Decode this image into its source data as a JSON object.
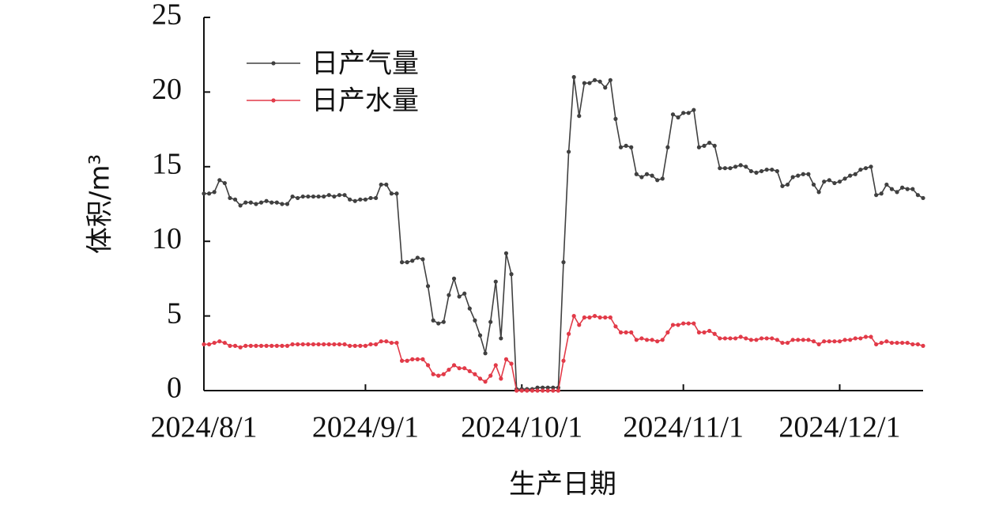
{
  "chart_data": {
    "type": "line",
    "xlabel": "生产日期",
    "ylabel": "体积/m³",
    "x": [
      "2024/8/1",
      "2024/8/2",
      "2024/8/3",
      "2024/8/4",
      "2024/8/5",
      "2024/8/6",
      "2024/8/7",
      "2024/8/8",
      "2024/8/9",
      "2024/8/10",
      "2024/8/11",
      "2024/8/12",
      "2024/8/13",
      "2024/8/14",
      "2024/8/15",
      "2024/8/16",
      "2024/8/17",
      "2024/8/18",
      "2024/8/19",
      "2024/8/20",
      "2024/8/21",
      "2024/8/22",
      "2024/8/23",
      "2024/8/24",
      "2024/8/25",
      "2024/8/26",
      "2024/8/27",
      "2024/8/28",
      "2024/8/29",
      "2024/8/30",
      "2024/8/31",
      "2024/9/1",
      "2024/9/2",
      "2024/9/3",
      "2024/9/4",
      "2024/9/5",
      "2024/9/6",
      "2024/9/7",
      "2024/9/8",
      "2024/9/9",
      "2024/9/10",
      "2024/9/11",
      "2024/9/12",
      "2024/9/13",
      "2024/9/14",
      "2024/9/15",
      "2024/9/16",
      "2024/9/17",
      "2024/9/18",
      "2024/9/19",
      "2024/9/20",
      "2024/9/21",
      "2024/9/22",
      "2024/9/23",
      "2024/9/24",
      "2024/9/25",
      "2024/9/26",
      "2024/9/27",
      "2024/9/28",
      "2024/9/29",
      "2024/9/30",
      "2024/10/1",
      "2024/10/2",
      "2024/10/3",
      "2024/10/4",
      "2024/10/5",
      "2024/10/6",
      "2024/10/7",
      "2024/10/8",
      "2024/10/9",
      "2024/10/10",
      "2024/10/11",
      "2024/10/12",
      "2024/10/13",
      "2024/10/14",
      "2024/10/15",
      "2024/10/16",
      "2024/10/17",
      "2024/10/18",
      "2024/10/19",
      "2024/10/20",
      "2024/10/21",
      "2024/10/22",
      "2024/10/23",
      "2024/10/24",
      "2024/10/25",
      "2024/10/26",
      "2024/10/27",
      "2024/10/28",
      "2024/10/29",
      "2024/10/30",
      "2024/10/31",
      "2024/11/1",
      "2024/11/2",
      "2024/11/3",
      "2024/11/4",
      "2024/11/5",
      "2024/11/6",
      "2024/11/7",
      "2024/11/8",
      "2024/11/9",
      "2024/11/10",
      "2024/11/11",
      "2024/11/12",
      "2024/11/13",
      "2024/11/14",
      "2024/11/15",
      "2024/11/16",
      "2024/11/17",
      "2024/11/18",
      "2024/11/19",
      "2024/11/20",
      "2024/11/21",
      "2024/11/22",
      "2024/11/23",
      "2024/11/24",
      "2024/11/25",
      "2024/11/26",
      "2024/11/27",
      "2024/11/28",
      "2024/11/29",
      "2024/11/30",
      "2024/12/1",
      "2024/12/2",
      "2024/12/3",
      "2024/12/4",
      "2024/12/5",
      "2024/12/6",
      "2024/12/7",
      "2024/12/8",
      "2024/12/9",
      "2024/12/10",
      "2024/12/11",
      "2024/12/12",
      "2024/12/13",
      "2024/12/14",
      "2024/12/15",
      "2024/12/16",
      "2024/12/17"
    ],
    "series": [
      {
        "name": "日产气量",
        "color": "#404040",
        "values": [
          13.2,
          13.2,
          13.3,
          14.1,
          13.9,
          12.9,
          12.8,
          12.4,
          12.6,
          12.6,
          12.5,
          12.6,
          12.7,
          12.6,
          12.6,
          12.5,
          12.5,
          13.0,
          12.9,
          13.0,
          13.0,
          13.0,
          13.0,
          13.0,
          13.1,
          13.0,
          13.1,
          13.1,
          12.8,
          12.7,
          12.8,
          12.8,
          12.9,
          12.9,
          13.8,
          13.8,
          13.2,
          13.2,
          8.6,
          8.6,
          8.7,
          8.9,
          8.8,
          7.0,
          4.7,
          4.5,
          4.6,
          6.4,
          7.5,
          6.3,
          6.5,
          5.5,
          4.7,
          3.7,
          2.5,
          4.6,
          7.3,
          3.5,
          9.2,
          7.8,
          0.1,
          0.1,
          0.1,
          0.1,
          0.2,
          0.2,
          0.2,
          0.2,
          0.2,
          8.6,
          16.0,
          21.0,
          18.4,
          20.6,
          20.6,
          20.8,
          20.7,
          20.3,
          20.8,
          18.2,
          16.3,
          16.4,
          16.3,
          14.5,
          14.3,
          14.5,
          14.4,
          14.1,
          14.2,
          16.3,
          18.5,
          18.3,
          18.6,
          18.6,
          18.8,
          16.3,
          16.4,
          16.6,
          16.4,
          14.9,
          14.9,
          14.9,
          15.0,
          15.1,
          15.0,
          14.7,
          14.6,
          14.7,
          14.8,
          14.8,
          14.7,
          13.7,
          13.8,
          14.3,
          14.4,
          14.5,
          14.5,
          13.8,
          13.3,
          14.0,
          14.1,
          13.9,
          14.0,
          14.2,
          14.4,
          14.5,
          14.8,
          14.9,
          15.0,
          13.1,
          13.2,
          13.8,
          13.5,
          13.3,
          13.6,
          13.5,
          13.5,
          13.1,
          12.9
        ]
      },
      {
        "name": "日产水量",
        "color": "#e23a48",
        "values": [
          3.1,
          3.1,
          3.2,
          3.3,
          3.2,
          3.0,
          3.0,
          2.9,
          3.0,
          3.0,
          3.0,
          3.0,
          3.0,
          3.0,
          3.0,
          3.0,
          3.0,
          3.1,
          3.1,
          3.1,
          3.1,
          3.1,
          3.1,
          3.1,
          3.1,
          3.1,
          3.1,
          3.1,
          3.0,
          3.0,
          3.0,
          3.0,
          3.1,
          3.1,
          3.3,
          3.3,
          3.2,
          3.2,
          2.0,
          2.0,
          2.1,
          2.1,
          2.1,
          1.7,
          1.1,
          1.0,
          1.1,
          1.4,
          1.7,
          1.5,
          1.5,
          1.3,
          1.1,
          0.8,
          0.6,
          1.0,
          1.7,
          0.8,
          2.1,
          1.8,
          0.0,
          0.0,
          0.0,
          0.0,
          0.0,
          0.0,
          0.0,
          0.0,
          0.0,
          2.0,
          3.8,
          5.0,
          4.4,
          4.9,
          4.9,
          5.0,
          4.9,
          4.9,
          4.9,
          4.3,
          3.9,
          3.9,
          3.9,
          3.4,
          3.5,
          3.4,
          3.4,
          3.3,
          3.4,
          3.9,
          4.4,
          4.4,
          4.5,
          4.5,
          4.5,
          3.9,
          3.9,
          4.0,
          3.8,
          3.5,
          3.5,
          3.5,
          3.5,
          3.6,
          3.5,
          3.4,
          3.4,
          3.5,
          3.5,
          3.5,
          3.4,
          3.2,
          3.2,
          3.4,
          3.4,
          3.4,
          3.4,
          3.3,
          3.1,
          3.3,
          3.3,
          3.3,
          3.3,
          3.4,
          3.4,
          3.5,
          3.5,
          3.6,
          3.6,
          3.1,
          3.2,
          3.3,
          3.2,
          3.2,
          3.2,
          3.2,
          3.1,
          3.1,
          3.0
        ]
      }
    ],
    "xlim": [
      "2024/8/1",
      "2024/12/17"
    ],
    "xticks": [
      "2024/8/1",
      "2024/9/1",
      "2024/10/1",
      "2024/11/1",
      "2024/12/1"
    ],
    "ylim": [
      0,
      25
    ],
    "yticks": [
      0,
      5,
      10,
      15,
      20,
      25
    ],
    "legend": "upper left",
    "grid": false
  }
}
